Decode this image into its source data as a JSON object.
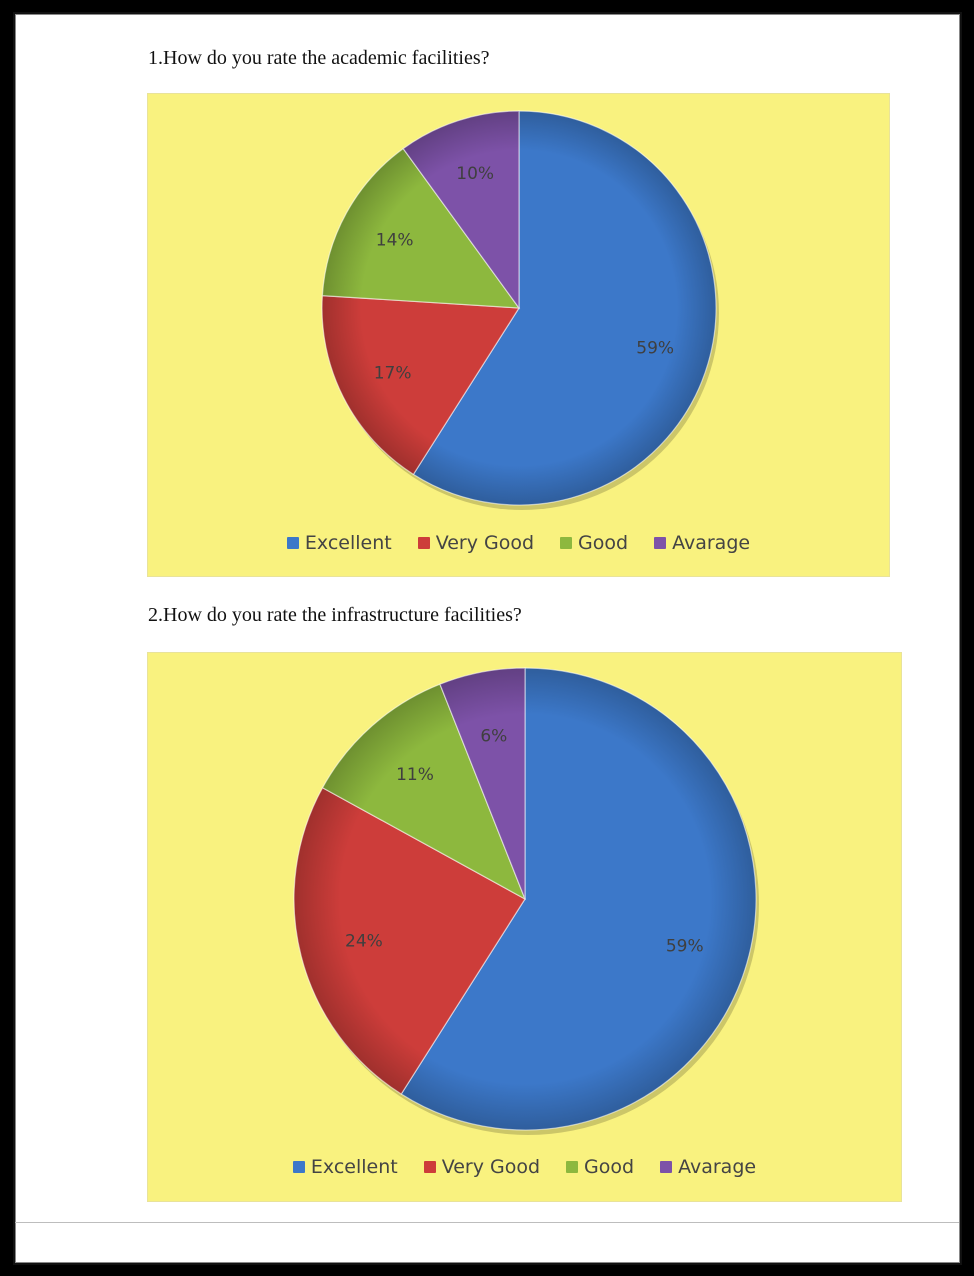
{
  "questions": [
    "1.How do you rate the academic facilities?",
    "2.How do you rate the infrastructure facilities?"
  ],
  "colors": {
    "Excellent": "#3c78c9",
    "Very Good": "#cd3d3a",
    "Good": "#8db83e",
    "Avarage": "#7d52a8",
    "background": "#f9f27f"
  },
  "chart_data": [
    {
      "type": "pie",
      "title": "1.How do you rate the academic facilities?",
      "categories": [
        "Excellent",
        "Very Good",
        "Good",
        "Avarage"
      ],
      "values": [
        59,
        17,
        14,
        10
      ],
      "labels": [
        "59%",
        "17%",
        "14%",
        "10%"
      ],
      "legend": [
        "Excellent",
        "Very Good",
        "Good",
        "Avarage"
      ],
      "legend_position": "bottom"
    },
    {
      "type": "pie",
      "title": "2.How do you rate the infrastructure facilities?",
      "categories": [
        "Excellent",
        "Very Good",
        "Good",
        "Avarage"
      ],
      "values": [
        59,
        24,
        11,
        6
      ],
      "labels": [
        "59%",
        "24%",
        "11%",
        "6%"
      ],
      "legend": [
        "Excellent",
        "Very Good",
        "Good",
        "Avarage"
      ],
      "legend_position": "bottom"
    }
  ]
}
